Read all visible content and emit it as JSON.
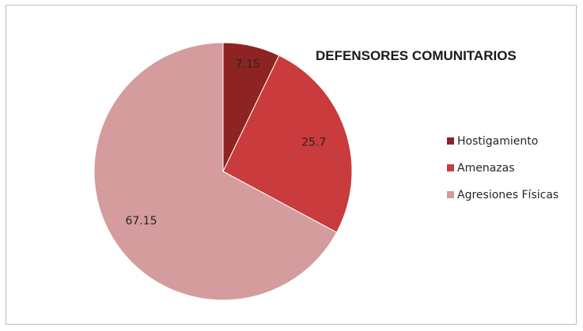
{
  "chart_data": {
    "type": "pie",
    "title": "DEFENSORES COMUNITARIOS",
    "categories": [
      "Hostigamiento",
      "Amenazas",
      "Agresiones Físicas"
    ],
    "values": [
      7.15,
      25.7,
      67.15
    ],
    "value_labels": [
      "7.15",
      "25.7",
      "67.15"
    ],
    "colors": [
      "#8e2324",
      "#c93b3c",
      "#d49c9c"
    ],
    "legend_position": "right",
    "start_angle": "12 o'clock, clockwise"
  }
}
